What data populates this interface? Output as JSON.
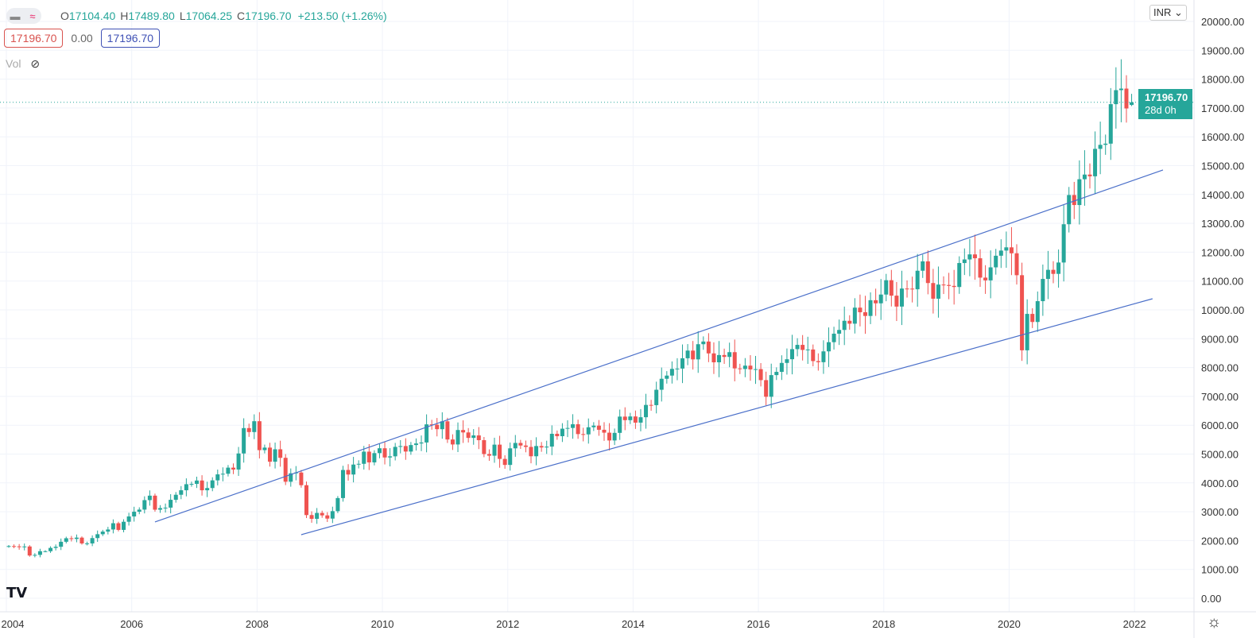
{
  "legend": {
    "o_label": "O",
    "o": "17104.40",
    "h_label": "H",
    "h": "17489.80",
    "l_label": "L",
    "l": "17064.25",
    "c_label": "C",
    "c": "17196.70",
    "change": "+213.50 (+1.26%)"
  },
  "values": {
    "bid": "17196.70",
    "spread": "0.00",
    "ask": "17196.70"
  },
  "vol_label": "Vol",
  "currency": "INR",
  "price_tag": {
    "price": "17196.70",
    "countdown": "28d 0h"
  },
  "logo": "TV",
  "colors": {
    "up": "#26a69a",
    "down": "#ef5350",
    "trendline": "#4a6fc9"
  },
  "chart_data": {
    "type": "candlestick",
    "interval": "monthly",
    "start": "2004-01",
    "closes": [
      1810,
      1800,
      1772,
      1796,
      1483,
      1505,
      1632,
      1632,
      1746,
      1786,
      1959,
      2081,
      2057,
      2103,
      1902,
      1902,
      2087,
      2221,
      2312,
      2385,
      2602,
      2371,
      2653,
      2837,
      3001,
      3074,
      3403,
      3558,
      3071,
      3128,
      3143,
      3414,
      3589,
      3745,
      3955,
      3966,
      4083,
      3745,
      3822,
      4088,
      4296,
      4318,
      4529,
      4464,
      5021,
      5901,
      5763,
      6139,
      5137,
      5224,
      4735,
      5166,
      4870,
      4041,
      4333,
      4360,
      3921,
      2885,
      2755,
      2959,
      2874,
      2763,
      3021,
      3474,
      4449,
      4291,
      4636,
      4662,
      5084,
      4712,
      5033,
      5201,
      4882,
      4922,
      5249,
      5278,
      5087,
      5313,
      5368,
      5402,
      6030,
      6018,
      5863,
      6135,
      5506,
      5333,
      5834,
      5750,
      5561,
      5647,
      5482,
      5001,
      4943,
      5327,
      4832,
      4624,
      5199,
      5385,
      5296,
      5248,
      4924,
      5279,
      5229,
      5259,
      5703,
      5620,
      5880,
      5905,
      6035,
      5693,
      5683,
      5930,
      5986,
      5842,
      5742,
      5472,
      5735,
      6299,
      6176,
      6304,
      6090,
      6277,
      6704,
      6696,
      7230,
      7611,
      7721,
      7954,
      7965,
      8322,
      8588,
      8283,
      8809,
      8902,
      8491,
      8182,
      8434,
      8369,
      8533,
      7971,
      7949,
      8066,
      7935,
      7946,
      7564,
      6987,
      7738,
      7850,
      8160,
      8288,
      8639,
      8786,
      8611,
      8626,
      8224,
      8186,
      8561,
      8880,
      9174,
      9304,
      9621,
      9521,
      10077,
      9918,
      9789,
      10335,
      10227,
      10531,
      11028,
      10493,
      10114,
      10739,
      10736,
      10714,
      11357,
      11681,
      10930,
      10387,
      10877,
      10863,
      10831,
      10793,
      11624,
      11748,
      11923,
      11789,
      11118,
      11023,
      11474,
      11877,
      12056,
      12168,
      11962,
      11202,
      8598,
      9860,
      9580,
      10302,
      11073,
      11388,
      11248,
      11642,
      12969,
      13982,
      13635,
      14529,
      14691,
      14631,
      15583,
      15722,
      15763,
      17132,
      17618,
      17672,
      16983,
      17197
    ],
    "last_candle": {
      "open": 17104.4,
      "high": 17489.8,
      "low": 17064.25,
      "close": 17196.7
    },
    "yticks": [
      "0.00",
      "1000.00",
      "2000.00",
      "3000.00",
      "4000.00",
      "5000.00",
      "6000.00",
      "7000.00",
      "8000.00",
      "9000.00",
      "10000.00",
      "11000.00",
      "12000.00",
      "13000.00",
      "14000.00",
      "15000.00",
      "16000.00",
      "17000.00",
      "18000.00",
      "19000.00",
      "20000.00"
    ],
    "xticks": [
      "2004",
      "2006",
      "2008",
      "2010",
      "2012",
      "2014",
      "2016",
      "2018",
      "2020",
      "2022"
    ],
    "ylim": [
      0,
      20000
    ],
    "trendlines": [
      {
        "from": [
          "2006-05",
          2645
        ],
        "to": [
          "2022-06",
          14850
        ]
      },
      {
        "from": [
          "2008-09",
          2204
        ],
        "to": [
          "2022-04",
          10386
        ]
      }
    ],
    "current_price_line": 17196.7
  }
}
